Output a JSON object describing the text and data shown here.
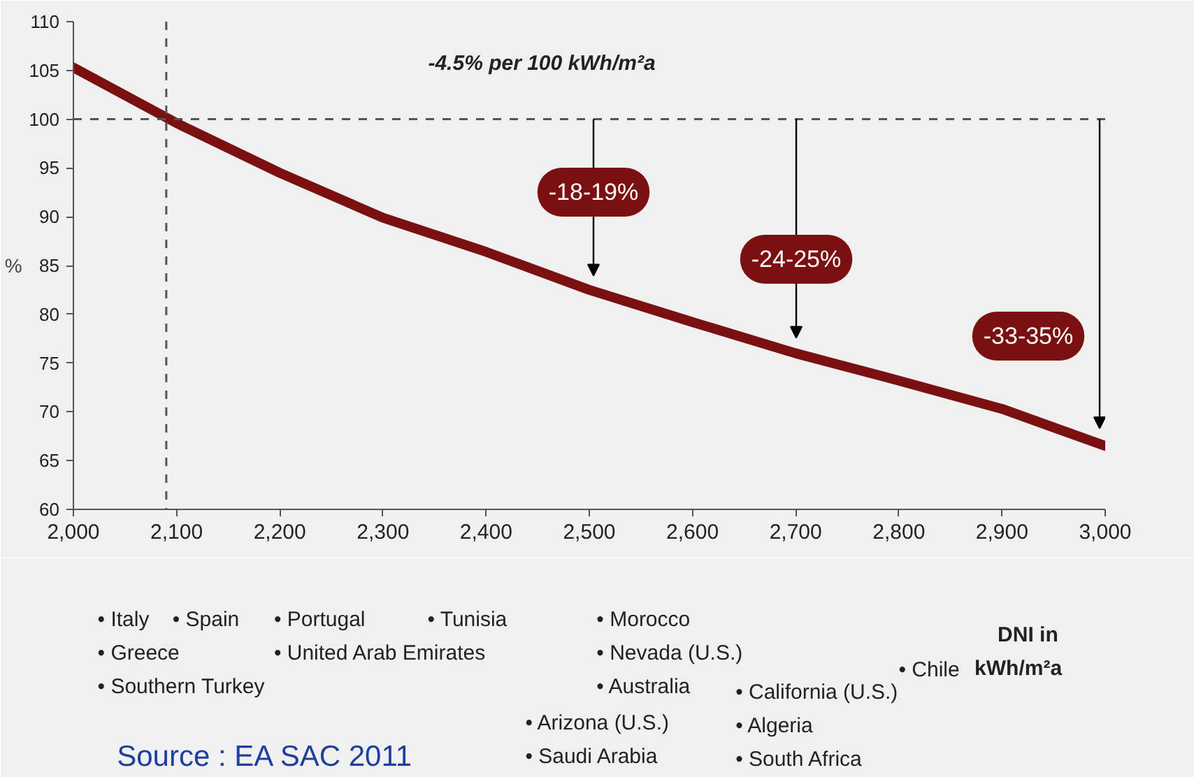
{
  "chart_data": {
    "type": "line",
    "xlabel": "DNI in kWh/m²a",
    "ylabel": "%",
    "x": [
      2000,
      2100,
      2200,
      2300,
      2400,
      2500,
      2600,
      2700,
      2800,
      2900,
      3000
    ],
    "series": [
      {
        "color": "#7a1010",
        "values": [
          105.3,
          99.6,
          94.5,
          89.9,
          86.4,
          82.5,
          79.2,
          76.0,
          73.2,
          70.3,
          66.5
        ]
      }
    ],
    "xlim": [
      2000,
      3000
    ],
    "ylim": [
      60,
      110
    ],
    "xticks": [
      {
        "value": 2000,
        "label": "2,000"
      },
      {
        "value": 2100,
        "label": "2,100"
      },
      {
        "value": 2200,
        "label": "2,200"
      },
      {
        "value": 2300,
        "label": "2,300"
      },
      {
        "value": 2400,
        "label": "2,400"
      },
      {
        "value": 2500,
        "label": "2,500"
      },
      {
        "value": 2600,
        "label": "2,600"
      },
      {
        "value": 2700,
        "label": "2,700"
      },
      {
        "value": 2800,
        "label": "2,800"
      },
      {
        "value": 2900,
        "label": "2,900"
      },
      {
        "value": 3000,
        "label": "3,000"
      }
    ],
    "yticks": [
      60,
      65,
      70,
      75,
      80,
      85,
      90,
      95,
      100,
      105,
      110
    ],
    "grid": false,
    "marker": "none",
    "line_style": "solid",
    "ref_lines": [
      {
        "axis": "y",
        "value": 100,
        "line_style": "dashed"
      },
      {
        "axis": "x",
        "value": 2090,
        "line_style": "dashed"
      }
    ],
    "annotations": [
      "-4.5% per 100 kWh/m²a",
      "-18-19%",
      "-24-25%",
      "-33-35%",
      "• Italy\n• Greece\n• Southern Turkey",
      "• Spain",
      "• Portugal\n• United Arab Emirates",
      "• Tunisia",
      "• Arizona (U.S.)\n• Saudi Arabia",
      "• Morocco\n• Nevada (U.S.)\n• Australia",
      "• California (U.S.)\n• Algeria\n• South Africa",
      "• Chile",
      "Source : EA SAC 2011"
    ]
  }
}
